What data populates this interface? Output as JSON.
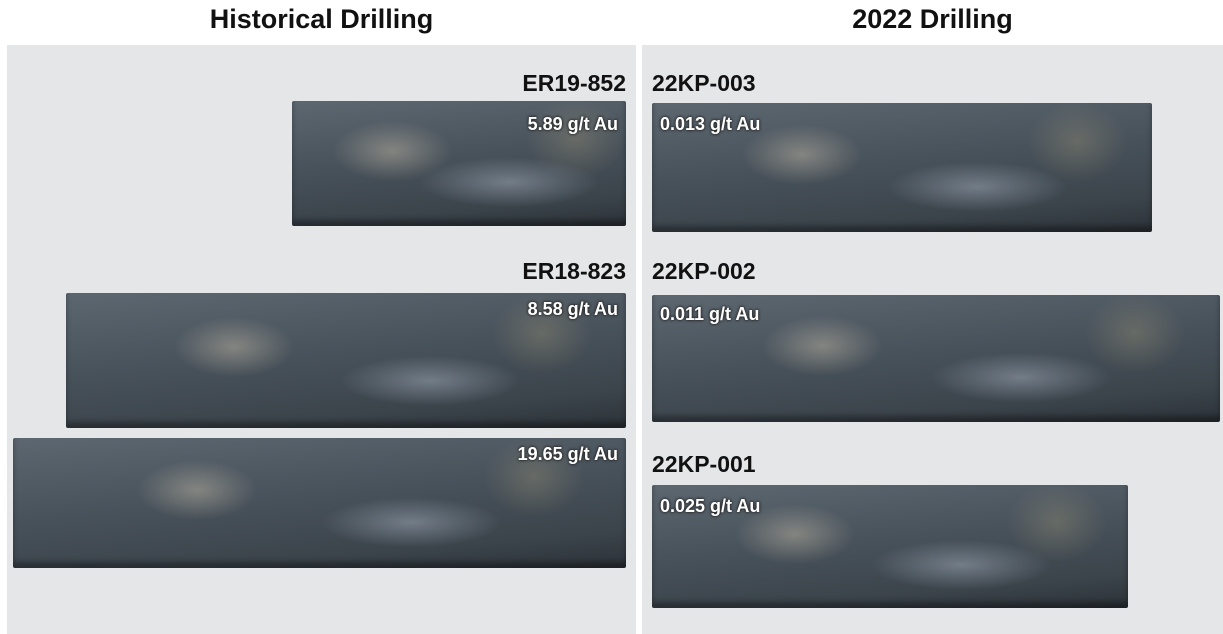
{
  "historical": {
    "title": "Historical Drilling",
    "cores": [
      {
        "hole": "ER19-852",
        "grade": "5.89 g/t Au"
      },
      {
        "hole": "ER18-823",
        "grade": "8.58 g/t Au"
      },
      {
        "grade": "19.65 g/t Au"
      }
    ]
  },
  "recent": {
    "title": "2022 Drilling",
    "cores": [
      {
        "hole": "22KP-003",
        "grade": "0.013 g/t Au"
      },
      {
        "hole": "22KP-002",
        "grade": "0.011 g/t Au"
      },
      {
        "hole": "22KP-001",
        "grade": "0.025 g/t Au"
      }
    ]
  }
}
